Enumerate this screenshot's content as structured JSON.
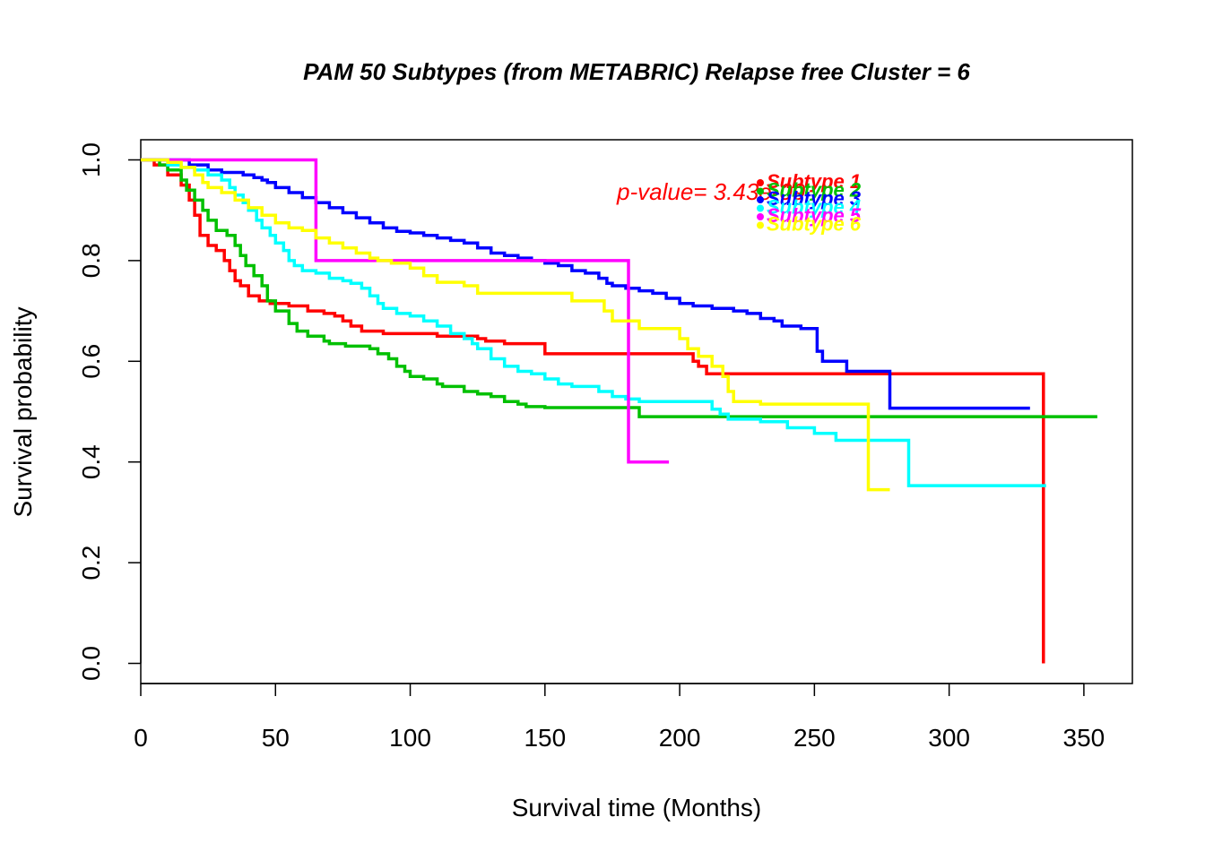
{
  "chart_data": {
    "type": "line",
    "title": "PAM 50 Subtypes (from METABRIC) Relapse free Cluster = 6",
    "xlabel": "Survival time (Months)",
    "ylabel": "Survival probability",
    "xlim": [
      0,
      368
    ],
    "ylim": [
      -0.04,
      1.04
    ],
    "xticks": [
      0,
      50,
      100,
      150,
      200,
      250,
      300,
      350
    ],
    "yticks": [
      0.0,
      0.2,
      0.4,
      0.6,
      0.8,
      1.0
    ],
    "xtick_labels": [
      "0",
      "50",
      "100",
      "150",
      "200",
      "250",
      "300",
      "350"
    ],
    "ytick_labels": [
      "0.0",
      "0.2",
      "0.4",
      "0.6",
      "0.8",
      "1.0"
    ],
    "grid": false,
    "annotation": {
      "text": "p-value= 3.43e-09",
      "color": "#ff0000"
    },
    "legend": {
      "placement": "top-right",
      "labels": [
        "Subtype 1",
        "Subtype 2",
        "Subtype 3",
        "Subtype 4",
        "Subtype 5",
        "Subtype 6"
      ]
    },
    "series": [
      {
        "color": "#ff0000",
        "points": [
          [
            0,
            1.0
          ],
          [
            5,
            0.99
          ],
          [
            10,
            0.97
          ],
          [
            15,
            0.95
          ],
          [
            18,
            0.92
          ],
          [
            20,
            0.89
          ],
          [
            22,
            0.85
          ],
          [
            25,
            0.83
          ],
          [
            28,
            0.82
          ],
          [
            31,
            0.8
          ],
          [
            33,
            0.78
          ],
          [
            35,
            0.76
          ],
          [
            37,
            0.75
          ],
          [
            40,
            0.73
          ],
          [
            44,
            0.72
          ],
          [
            48,
            0.715
          ],
          [
            55,
            0.71
          ],
          [
            62,
            0.7
          ],
          [
            68,
            0.695
          ],
          [
            72,
            0.69
          ],
          [
            75,
            0.68
          ],
          [
            78,
            0.67
          ],
          [
            82,
            0.66
          ],
          [
            90,
            0.655
          ],
          [
            110,
            0.65
          ],
          [
            125,
            0.645
          ],
          [
            128,
            0.64
          ],
          [
            135,
            0.635
          ],
          [
            150,
            0.615
          ],
          [
            170,
            0.615
          ],
          [
            195,
            0.615
          ],
          [
            205,
            0.6
          ],
          [
            207,
            0.59
          ],
          [
            210,
            0.575
          ],
          [
            335,
            0.575
          ],
          [
            335,
            0.0
          ]
        ]
      },
      {
        "color": "#00c000",
        "points": [
          [
            0,
            1.0
          ],
          [
            7,
            0.99
          ],
          [
            10,
            0.98
          ],
          [
            15,
            0.96
          ],
          [
            17,
            0.94
          ],
          [
            20,
            0.92
          ],
          [
            23,
            0.9
          ],
          [
            25,
            0.88
          ],
          [
            28,
            0.86
          ],
          [
            32,
            0.85
          ],
          [
            35,
            0.83
          ],
          [
            37,
            0.81
          ],
          [
            39,
            0.79
          ],
          [
            42,
            0.77
          ],
          [
            45,
            0.75
          ],
          [
            47,
            0.72
          ],
          [
            50,
            0.7
          ],
          [
            55,
            0.675
          ],
          [
            58,
            0.66
          ],
          [
            62,
            0.65
          ],
          [
            68,
            0.64
          ],
          [
            70,
            0.635
          ],
          [
            76,
            0.63
          ],
          [
            85,
            0.625
          ],
          [
            88,
            0.615
          ],
          [
            92,
            0.605
          ],
          [
            95,
            0.59
          ],
          [
            98,
            0.58
          ],
          [
            100,
            0.57
          ],
          [
            105,
            0.565
          ],
          [
            110,
            0.555
          ],
          [
            112,
            0.55
          ],
          [
            120,
            0.54
          ],
          [
            125,
            0.535
          ],
          [
            130,
            0.53
          ],
          [
            135,
            0.52
          ],
          [
            140,
            0.515
          ],
          [
            143,
            0.51
          ],
          [
            150,
            0.508
          ],
          [
            170,
            0.508
          ],
          [
            185,
            0.508
          ],
          [
            185,
            0.49
          ],
          [
            355,
            0.49
          ]
        ]
      },
      {
        "color": "#0000ff",
        "points": [
          [
            0,
            1.0
          ],
          [
            10,
            1.0
          ],
          [
            18,
            0.99
          ],
          [
            25,
            0.98
          ],
          [
            30,
            0.975
          ],
          [
            38,
            0.97
          ],
          [
            42,
            0.965
          ],
          [
            45,
            0.96
          ],
          [
            47,
            0.955
          ],
          [
            50,
            0.945
          ],
          [
            55,
            0.935
          ],
          [
            60,
            0.925
          ],
          [
            65,
            0.915
          ],
          [
            70,
            0.905
          ],
          [
            75,
            0.895
          ],
          [
            80,
            0.885
          ],
          [
            85,
            0.875
          ],
          [
            90,
            0.865
          ],
          [
            95,
            0.858
          ],
          [
            100,
            0.855
          ],
          [
            105,
            0.85
          ],
          [
            110,
            0.845
          ],
          [
            115,
            0.84
          ],
          [
            120,
            0.835
          ],
          [
            125,
            0.825
          ],
          [
            130,
            0.815
          ],
          [
            135,
            0.81
          ],
          [
            140,
            0.805
          ],
          [
            145,
            0.8
          ],
          [
            150,
            0.795
          ],
          [
            155,
            0.79
          ],
          [
            160,
            0.78
          ],
          [
            165,
            0.775
          ],
          [
            170,
            0.765
          ],
          [
            173,
            0.755
          ],
          [
            175,
            0.75
          ],
          [
            180,
            0.745
          ],
          [
            185,
            0.74
          ],
          [
            190,
            0.735
          ],
          [
            195,
            0.725
          ],
          [
            200,
            0.715
          ],
          [
            205,
            0.71
          ],
          [
            212,
            0.705
          ],
          [
            220,
            0.7
          ],
          [
            225,
            0.695
          ],
          [
            230,
            0.685
          ],
          [
            235,
            0.68
          ],
          [
            238,
            0.67
          ],
          [
            245,
            0.665
          ],
          [
            251,
            0.65
          ],
          [
            251,
            0.62
          ],
          [
            253,
            0.6
          ],
          [
            262,
            0.6
          ],
          [
            262,
            0.58
          ],
          [
            278,
            0.58
          ],
          [
            278,
            0.507
          ],
          [
            330,
            0.507
          ]
        ]
      },
      {
        "color": "#00ffff",
        "points": [
          [
            0,
            1.0
          ],
          [
            10,
            0.99
          ],
          [
            15,
            0.985
          ],
          [
            20,
            0.98
          ],
          [
            25,
            0.97
          ],
          [
            30,
            0.96
          ],
          [
            33,
            0.945
          ],
          [
            35,
            0.93
          ],
          [
            38,
            0.915
          ],
          [
            40,
            0.9
          ],
          [
            43,
            0.88
          ],
          [
            45,
            0.865
          ],
          [
            48,
            0.85
          ],
          [
            50,
            0.835
          ],
          [
            53,
            0.82
          ],
          [
            55,
            0.8
          ],
          [
            57,
            0.79
          ],
          [
            60,
            0.78
          ],
          [
            65,
            0.775
          ],
          [
            70,
            0.765
          ],
          [
            75,
            0.76
          ],
          [
            78,
            0.755
          ],
          [
            82,
            0.745
          ],
          [
            85,
            0.73
          ],
          [
            88,
            0.715
          ],
          [
            90,
            0.705
          ],
          [
            95,
            0.695
          ],
          [
            100,
            0.69
          ],
          [
            105,
            0.68
          ],
          [
            110,
            0.67
          ],
          [
            115,
            0.655
          ],
          [
            120,
            0.645
          ],
          [
            123,
            0.635
          ],
          [
            125,
            0.625
          ],
          [
            130,
            0.605
          ],
          [
            135,
            0.59
          ],
          [
            140,
            0.58
          ],
          [
            145,
            0.575
          ],
          [
            150,
            0.565
          ],
          [
            155,
            0.555
          ],
          [
            160,
            0.55
          ],
          [
            170,
            0.54
          ],
          [
            175,
            0.53
          ],
          [
            180,
            0.525
          ],
          [
            185,
            0.52
          ],
          [
            190,
            0.52
          ],
          [
            208,
            0.52
          ],
          [
            212,
            0.505
          ],
          [
            215,
            0.495
          ],
          [
            218,
            0.485
          ],
          [
            230,
            0.48
          ],
          [
            240,
            0.468
          ],
          [
            250,
            0.457
          ],
          [
            258,
            0.443
          ],
          [
            285,
            0.443
          ],
          [
            285,
            0.353
          ],
          [
            336,
            0.353
          ]
        ]
      },
      {
        "color": "#ff00ff",
        "points": [
          [
            0,
            1.0
          ],
          [
            65,
            1.0
          ],
          [
            65,
            0.8
          ],
          [
            181,
            0.8
          ],
          [
            181,
            0.4
          ],
          [
            196,
            0.4
          ]
        ]
      },
      {
        "color": "#ffff00",
        "points": [
          [
            0,
            1.0
          ],
          [
            10,
            0.995
          ],
          [
            15,
            0.985
          ],
          [
            20,
            0.97
          ],
          [
            23,
            0.955
          ],
          [
            25,
            0.945
          ],
          [
            30,
            0.935
          ],
          [
            35,
            0.92
          ],
          [
            40,
            0.905
          ],
          [
            45,
            0.89
          ],
          [
            50,
            0.875
          ],
          [
            55,
            0.865
          ],
          [
            60,
            0.86
          ],
          [
            65,
            0.845
          ],
          [
            70,
            0.835
          ],
          [
            75,
            0.825
          ],
          [
            80,
            0.815
          ],
          [
            85,
            0.805
          ],
          [
            88,
            0.8
          ],
          [
            93,
            0.795
          ],
          [
            100,
            0.785
          ],
          [
            105,
            0.77
          ],
          [
            110,
            0.757
          ],
          [
            120,
            0.75
          ],
          [
            125,
            0.735
          ],
          [
            135,
            0.735
          ],
          [
            150,
            0.735
          ],
          [
            160,
            0.72
          ],
          [
            172,
            0.7
          ],
          [
            175,
            0.68
          ],
          [
            185,
            0.665
          ],
          [
            195,
            0.665
          ],
          [
            200,
            0.645
          ],
          [
            203,
            0.625
          ],
          [
            207,
            0.61
          ],
          [
            212,
            0.59
          ],
          [
            216,
            0.57
          ],
          [
            218,
            0.54
          ],
          [
            220,
            0.52
          ],
          [
            230,
            0.515
          ],
          [
            270,
            0.515
          ],
          [
            270,
            0.345
          ],
          [
            278,
            0.345
          ]
        ]
      }
    ]
  }
}
